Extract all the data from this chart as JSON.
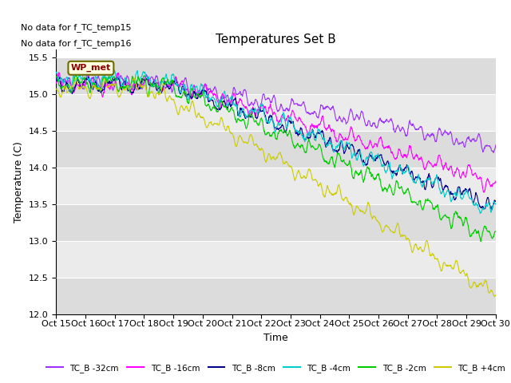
{
  "title": "Temperatures Set B",
  "xlabel": "Time",
  "ylabel": "Temperature (C)",
  "ylim": [
    12.0,
    15.6
  ],
  "background_color": "#ffffff",
  "plot_bg_color": "#e8e8e8",
  "no_data_text": [
    "No data for f_TC_temp15",
    "No data for f_TC_temp16"
  ],
  "wp_met_label": "WP_met",
  "xtick_labels": [
    "Oct 15",
    "Oct 16",
    "Oct 17",
    "Oct 18",
    "Oct 19",
    "Oct 20",
    "Oct 21",
    "Oct 22",
    "Oct 23",
    "Oct 24",
    "Oct 25",
    "Oct 26",
    "Oct 27",
    "Oct 28",
    "Oct 29",
    "Oct 30"
  ],
  "legend": [
    {
      "label": "TC_B -32cm",
      "color": "#9b30ff"
    },
    {
      "label": "TC_B -16cm",
      "color": "#ff00ff"
    },
    {
      "label": "TC_B -8cm",
      "color": "#00008b"
    },
    {
      "label": "TC_B -4cm",
      "color": "#00cccc"
    },
    {
      "label": "TC_B -2cm",
      "color": "#00cc00"
    },
    {
      "label": "TC_B +4cm",
      "color": "#cccc00"
    }
  ],
  "n_points": 1440,
  "seed": 42,
  "band_colors": [
    "#dcdcdc",
    "#ebebeb"
  ],
  "ytick_interval": 0.5
}
